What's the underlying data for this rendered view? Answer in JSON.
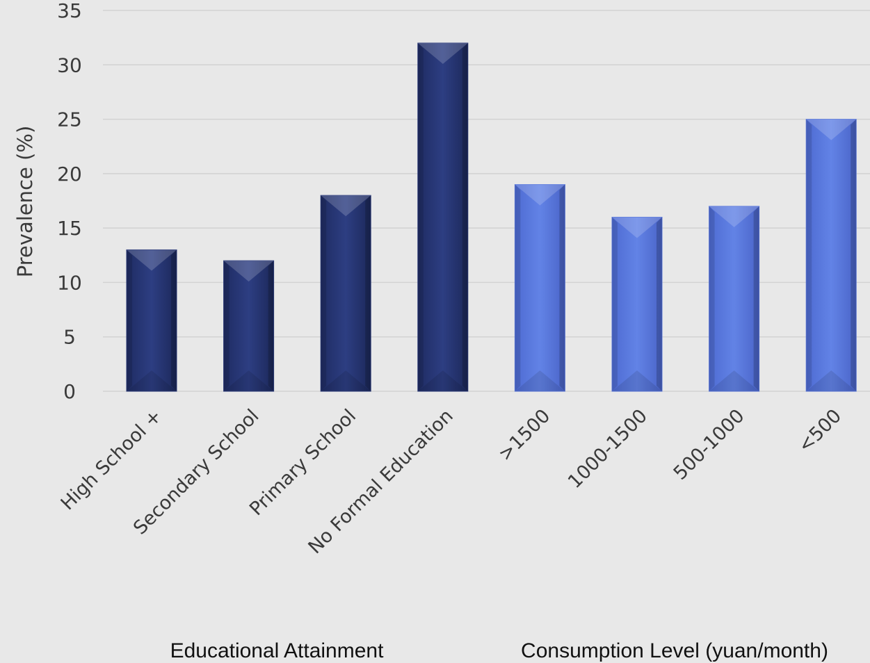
{
  "chart_data": {
    "type": "bar",
    "ylabel": "Prevalence (%)",
    "ylim": [
      0,
      35
    ],
    "yticks": [
      0,
      5,
      10,
      15,
      20,
      25,
      30,
      35
    ],
    "grid": true,
    "legend": "none",
    "categories": [
      "High School +",
      "Secondary School",
      "Primary School",
      "No Formal Education",
      ">1500",
      "1000-1500",
      "500-1000",
      "<500"
    ],
    "values": [
      13,
      12,
      18,
      32,
      19,
      16,
      17,
      25
    ],
    "groups": [
      {
        "title": "Educational Attainment",
        "start": 0,
        "end": 3,
        "color": "#2b3a7a"
      },
      {
        "title": "Consumption Level (yuan/month)",
        "start": 4,
        "end": 7,
        "color": "#5a78dc"
      }
    ]
  }
}
